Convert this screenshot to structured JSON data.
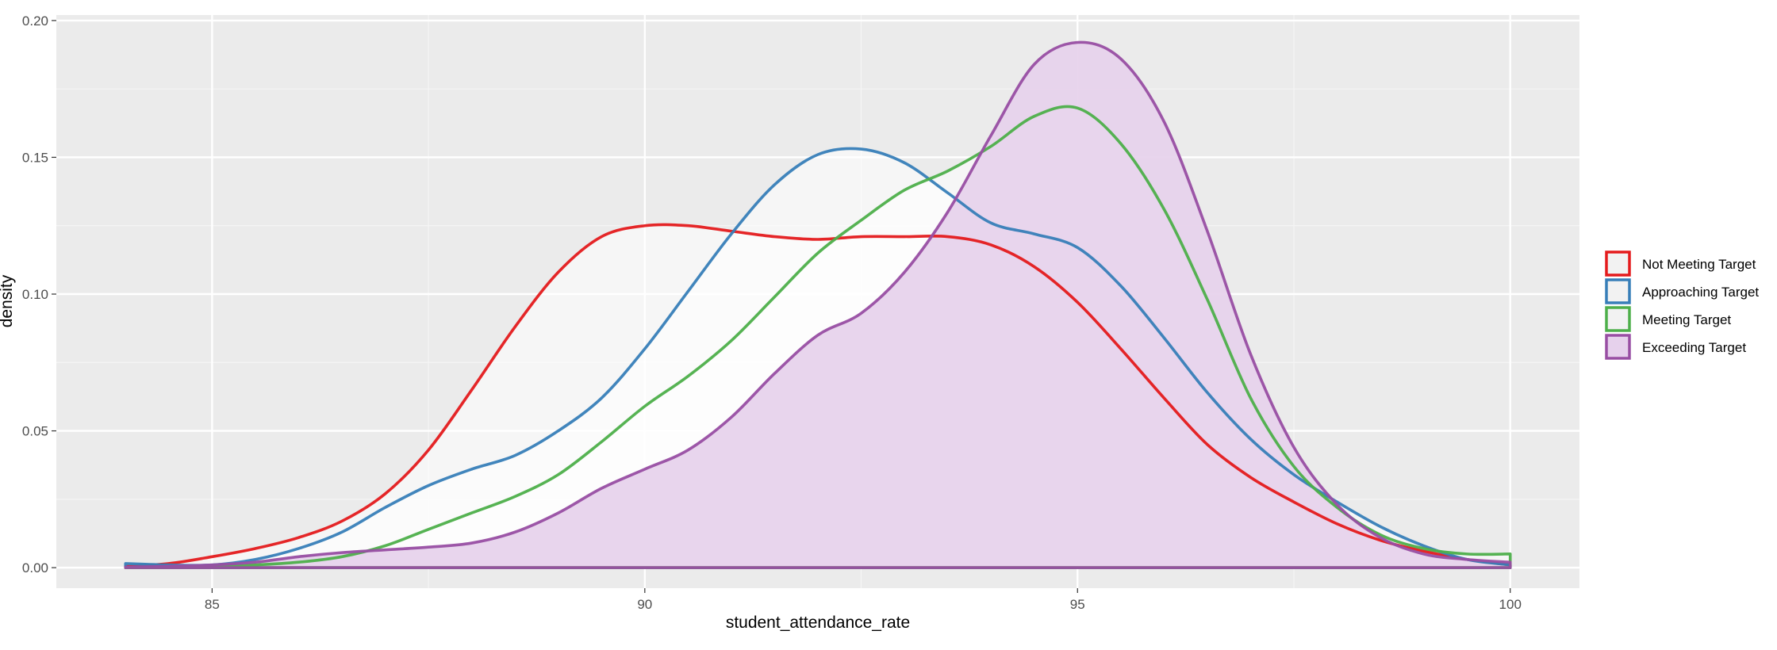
{
  "chart_data": {
    "type": "area",
    "xlabel": "student_attendance_rate",
    "ylabel": "density",
    "xlim": [
      83.2,
      100.8
    ],
    "ylim": [
      -0.0075,
      0.202
    ],
    "x_ticks": [
      85,
      90,
      95,
      100
    ],
    "x_tick_labels": [
      "85",
      "90",
      "95",
      "100"
    ],
    "y_ticks": [
      0,
      0.05,
      0.1,
      0.15,
      0.2
    ],
    "y_tick_labels": [
      "0.00",
      "0.05",
      "0.10",
      "0.15",
      "0.20"
    ],
    "grid": true,
    "legend_position": "right",
    "series": [
      {
        "name": "Not Meeting Target",
        "color": "#e41a1c",
        "x": [
          84,
          84.5,
          85,
          85.5,
          86,
          86.5,
          87,
          87.5,
          88,
          88.5,
          89,
          89.5,
          90,
          90.5,
          91,
          91.5,
          92,
          92.5,
          93,
          93.5,
          94,
          94.5,
          95,
          95.5,
          96,
          96.5,
          97,
          97.5,
          98,
          98.5,
          99,
          99.5,
          100
        ],
        "y": [
          0.0005,
          0.0015,
          0.004,
          0.007,
          0.011,
          0.017,
          0.027,
          0.043,
          0.065,
          0.088,
          0.108,
          0.121,
          0.125,
          0.125,
          0.123,
          0.121,
          0.12,
          0.121,
          0.121,
          0.121,
          0.118,
          0.11,
          0.097,
          0.08,
          0.062,
          0.045,
          0.033,
          0.024,
          0.016,
          0.01,
          0.006,
          0.003,
          0.001
        ]
      },
      {
        "name": "Approaching Target",
        "color": "#377eb8",
        "x": [
          84,
          84.5,
          85,
          85.5,
          86,
          86.5,
          87,
          87.5,
          88,
          88.5,
          89,
          89.5,
          90,
          90.5,
          91,
          91.5,
          92,
          92.5,
          93,
          93.5,
          94,
          94.5,
          95,
          95.5,
          96,
          96.5,
          97,
          97.5,
          98,
          98.5,
          99,
          99.5,
          100
        ],
        "y": [
          0.0015,
          0.001,
          0.001,
          0.003,
          0.007,
          0.013,
          0.022,
          0.03,
          0.036,
          0.041,
          0.05,
          0.062,
          0.08,
          0.101,
          0.122,
          0.14,
          0.151,
          0.153,
          0.148,
          0.137,
          0.126,
          0.122,
          0.117,
          0.103,
          0.084,
          0.064,
          0.047,
          0.034,
          0.024,
          0.015,
          0.008,
          0.003,
          0.001
        ]
      },
      {
        "name": "Meeting Target",
        "color": "#4daf4a",
        "x": [
          84,
          84.5,
          85,
          85.5,
          86,
          86.5,
          87,
          87.5,
          88,
          88.5,
          89,
          89.5,
          90,
          90.5,
          91,
          91.5,
          92,
          92.5,
          93,
          93.5,
          94,
          94.5,
          95,
          95.5,
          96,
          96.5,
          97,
          97.5,
          98,
          98.5,
          99,
          99.5,
          100
        ],
        "y": [
          0,
          0,
          0.0005,
          0.001,
          0.002,
          0.004,
          0.008,
          0.014,
          0.02,
          0.026,
          0.034,
          0.046,
          0.059,
          0.07,
          0.083,
          0.099,
          0.115,
          0.127,
          0.138,
          0.145,
          0.154,
          0.165,
          0.168,
          0.155,
          0.131,
          0.098,
          0.062,
          0.037,
          0.022,
          0.012,
          0.007,
          0.005,
          0.005
        ]
      },
      {
        "name": "Exceeding Target",
        "color": "#984ea3",
        "fill": "#e6d1ec",
        "x": [
          84,
          84.5,
          85,
          85.5,
          86,
          86.5,
          87,
          87.5,
          88,
          88.5,
          89,
          89.5,
          90,
          90.5,
          91,
          91.5,
          92,
          92.5,
          93,
          93.5,
          94,
          94.5,
          95,
          95.5,
          96,
          96.5,
          97,
          97.5,
          98,
          98.5,
          99,
          99.5,
          100
        ],
        "y": [
          0.0002,
          0.0005,
          0.001,
          0.002,
          0.004,
          0.0055,
          0.0065,
          0.0075,
          0.009,
          0.013,
          0.02,
          0.029,
          0.036,
          0.043,
          0.055,
          0.071,
          0.085,
          0.093,
          0.108,
          0.13,
          0.158,
          0.184,
          0.192,
          0.186,
          0.163,
          0.123,
          0.078,
          0.044,
          0.023,
          0.011,
          0.005,
          0.003,
          0.002
        ]
      }
    ]
  }
}
